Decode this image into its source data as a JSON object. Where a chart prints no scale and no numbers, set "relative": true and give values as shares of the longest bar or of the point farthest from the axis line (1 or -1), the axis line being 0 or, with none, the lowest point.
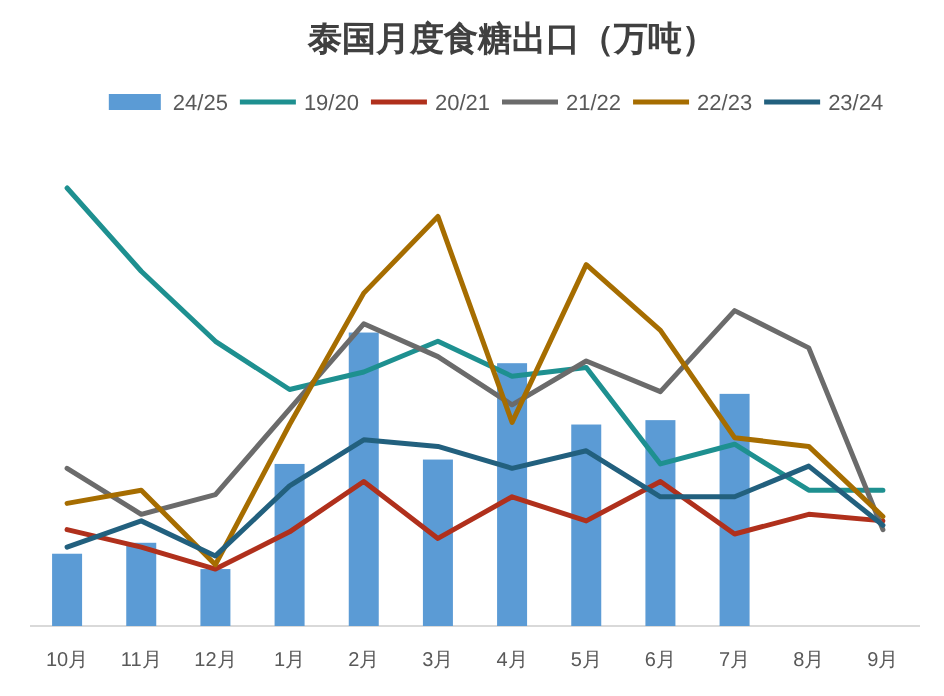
{
  "chart_data": {
    "type": "bar",
    "title": "泰国月度食糖出口（万吨）",
    "relative": true,
    "legend": "top",
    "categories": [
      "10月",
      "11月",
      "12月",
      "1月",
      "2月",
      "3月",
      "4月",
      "5月",
      "6月",
      "7月",
      "8月",
      "9月"
    ],
    "series": [
      {
        "name": "24/25",
        "type": "bar",
        "color": "#5b9bd5",
        "values": [
          0.165,
          0.19,
          0.13,
          0.37,
          0.67,
          0.38,
          0.6,
          0.46,
          0.47,
          0.53,
          null,
          null
        ]
      },
      {
        "name": "19/20",
        "type": "line",
        "color": "#1e9090",
        "values": [
          1.0,
          0.81,
          0.65,
          0.54,
          0.58,
          0.65,
          0.57,
          0.59,
          0.37,
          0.415,
          0.31,
          0.31
        ]
      },
      {
        "name": "20/21",
        "type": "line",
        "color": "#b0301c",
        "values": [
          0.22,
          0.18,
          0.13,
          0.215,
          0.33,
          0.2,
          0.295,
          0.24,
          0.33,
          0.21,
          0.255,
          0.24
        ]
      },
      {
        "name": "21/22",
        "type": "line",
        "color": "#6b6b6b",
        "values": [
          0.36,
          0.255,
          0.3,
          0.495,
          0.69,
          0.615,
          0.505,
          0.605,
          0.535,
          0.72,
          0.635,
          0.22
        ]
      },
      {
        "name": "22/23",
        "type": "line",
        "color": "#a66d00",
        "values": [
          0.28,
          0.31,
          0.14,
          0.46,
          0.76,
          0.935,
          0.465,
          0.825,
          0.675,
          0.43,
          0.41,
          0.25
        ]
      },
      {
        "name": "23/24",
        "type": "line",
        "color": "#22607e",
        "values": [
          0.18,
          0.24,
          0.16,
          0.32,
          0.425,
          0.41,
          0.36,
          0.4,
          0.295,
          0.295,
          0.365,
          0.23
        ]
      }
    ]
  }
}
